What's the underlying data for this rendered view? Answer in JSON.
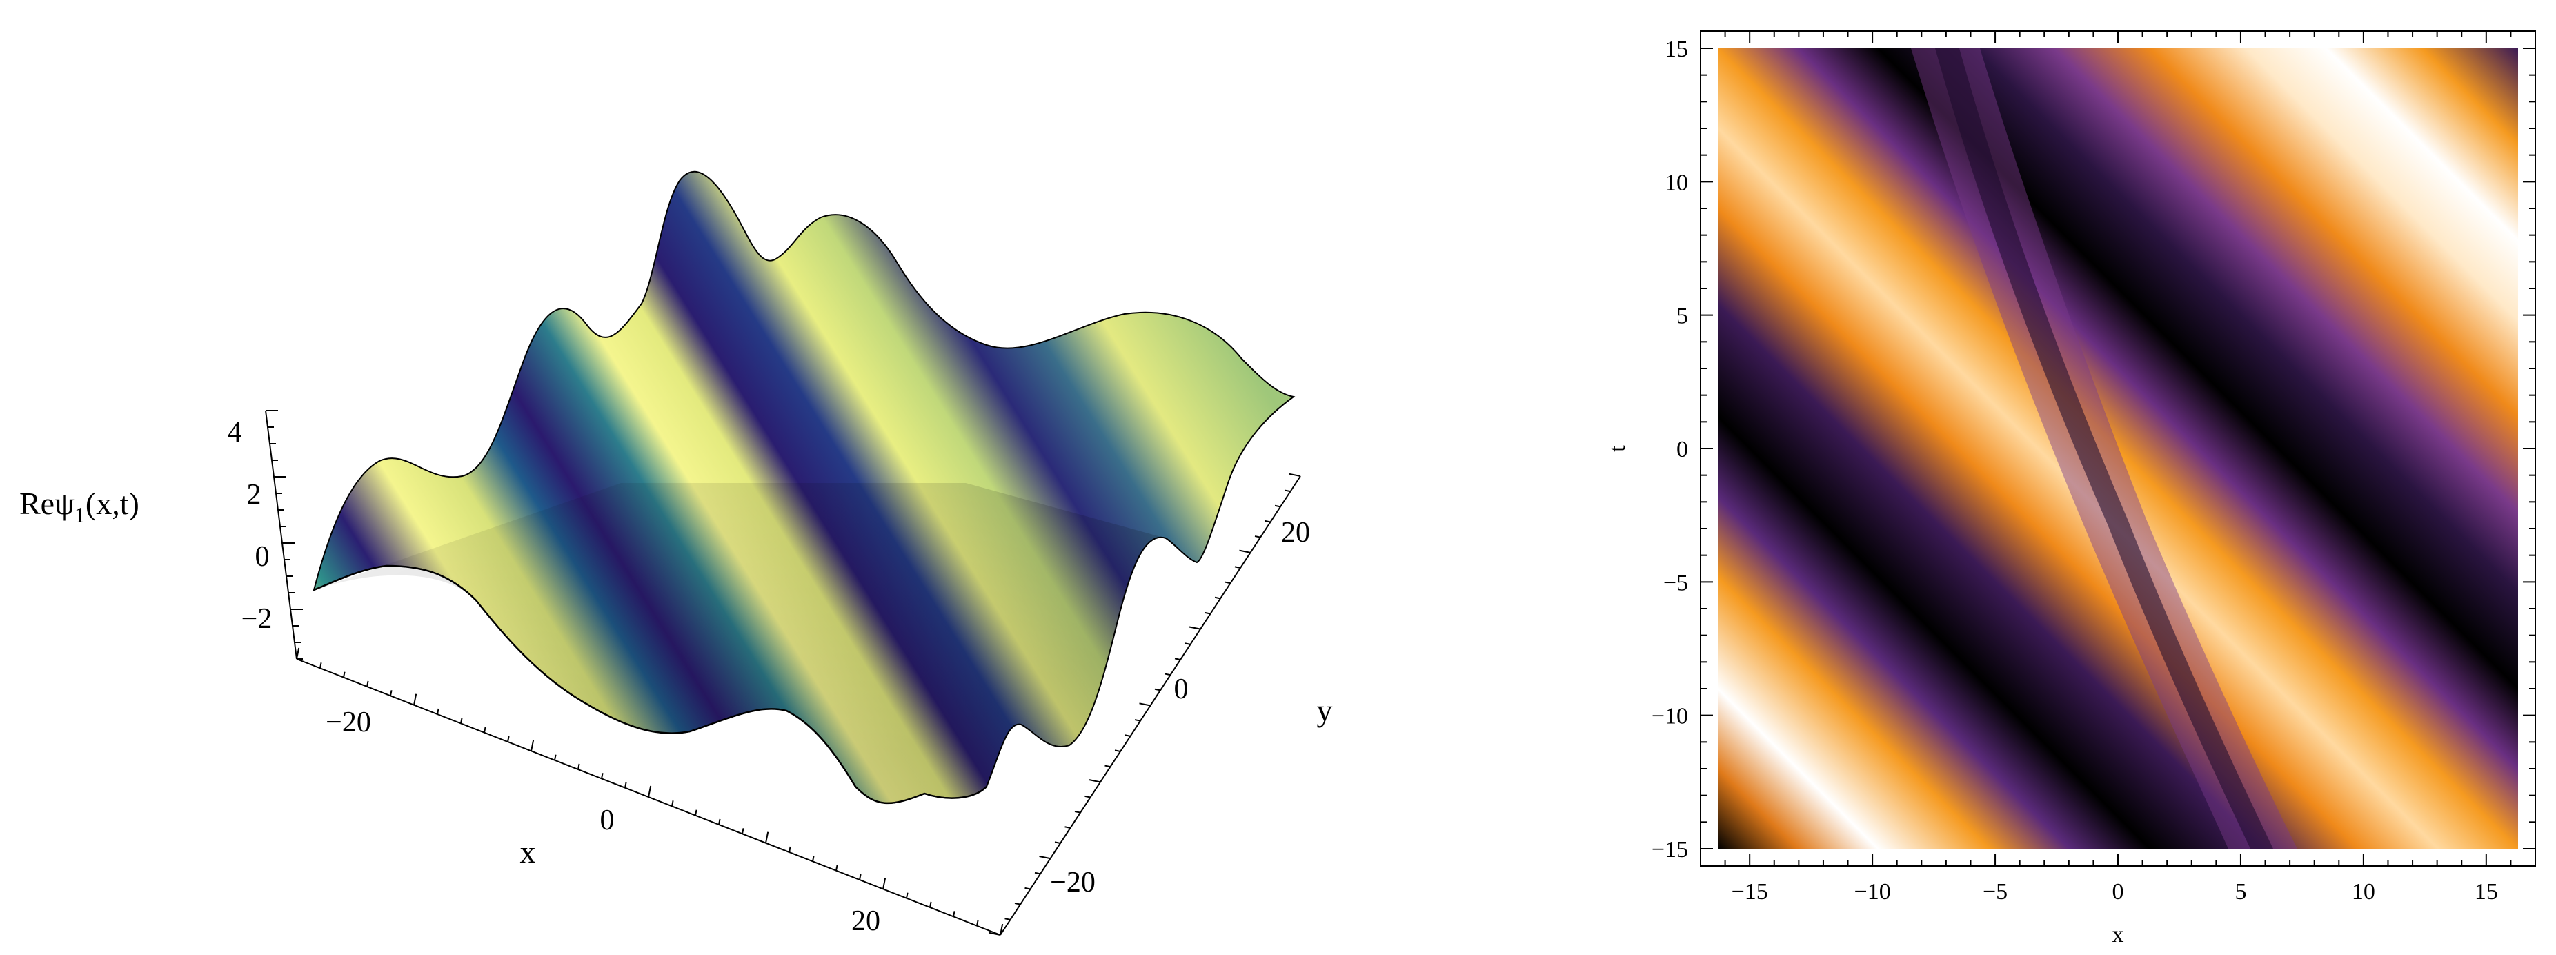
{
  "chart_data": [
    {
      "type": "surface3d",
      "zlabel": "Reψ",
      "zlabel_sub": "1",
      "zlabel_tail": "(x,t)",
      "xlabel": "x",
      "ylabel": "y",
      "x_ticks": [
        "−20",
        "0",
        "20"
      ],
      "y_ticks": [
        "−20",
        "0",
        "20"
      ],
      "z_ticks": [
        "4",
        "2",
        "0",
        "−2"
      ],
      "xlim": [
        -30,
        30
      ],
      "ylim": [
        -30,
        30
      ],
      "zlim": [
        -3,
        4.5
      ],
      "colormap": [
        "#2b1a6e",
        "#1f3f8f",
        "#1f8f8a",
        "#4cc38a",
        "#b9e27a",
        "#f4f58e"
      ]
    },
    {
      "type": "heatmap",
      "xlabel": "x",
      "ylabel": "t",
      "x_ticks": [
        "−15",
        "−10",
        "−5",
        "0",
        "5",
        "10",
        "15"
      ],
      "y_ticks": [
        "15",
        "10",
        "5",
        "0",
        "−5",
        "−10",
        "−15"
      ],
      "xlim": [
        -17,
        17
      ],
      "ylim": [
        -15,
        15
      ],
      "colormap": [
        "#000000",
        "#3b1a55",
        "#7a3a8a",
        "#e07a1a",
        "#f59a20",
        "#ffe2b0",
        "#ffffff"
      ]
    }
  ]
}
